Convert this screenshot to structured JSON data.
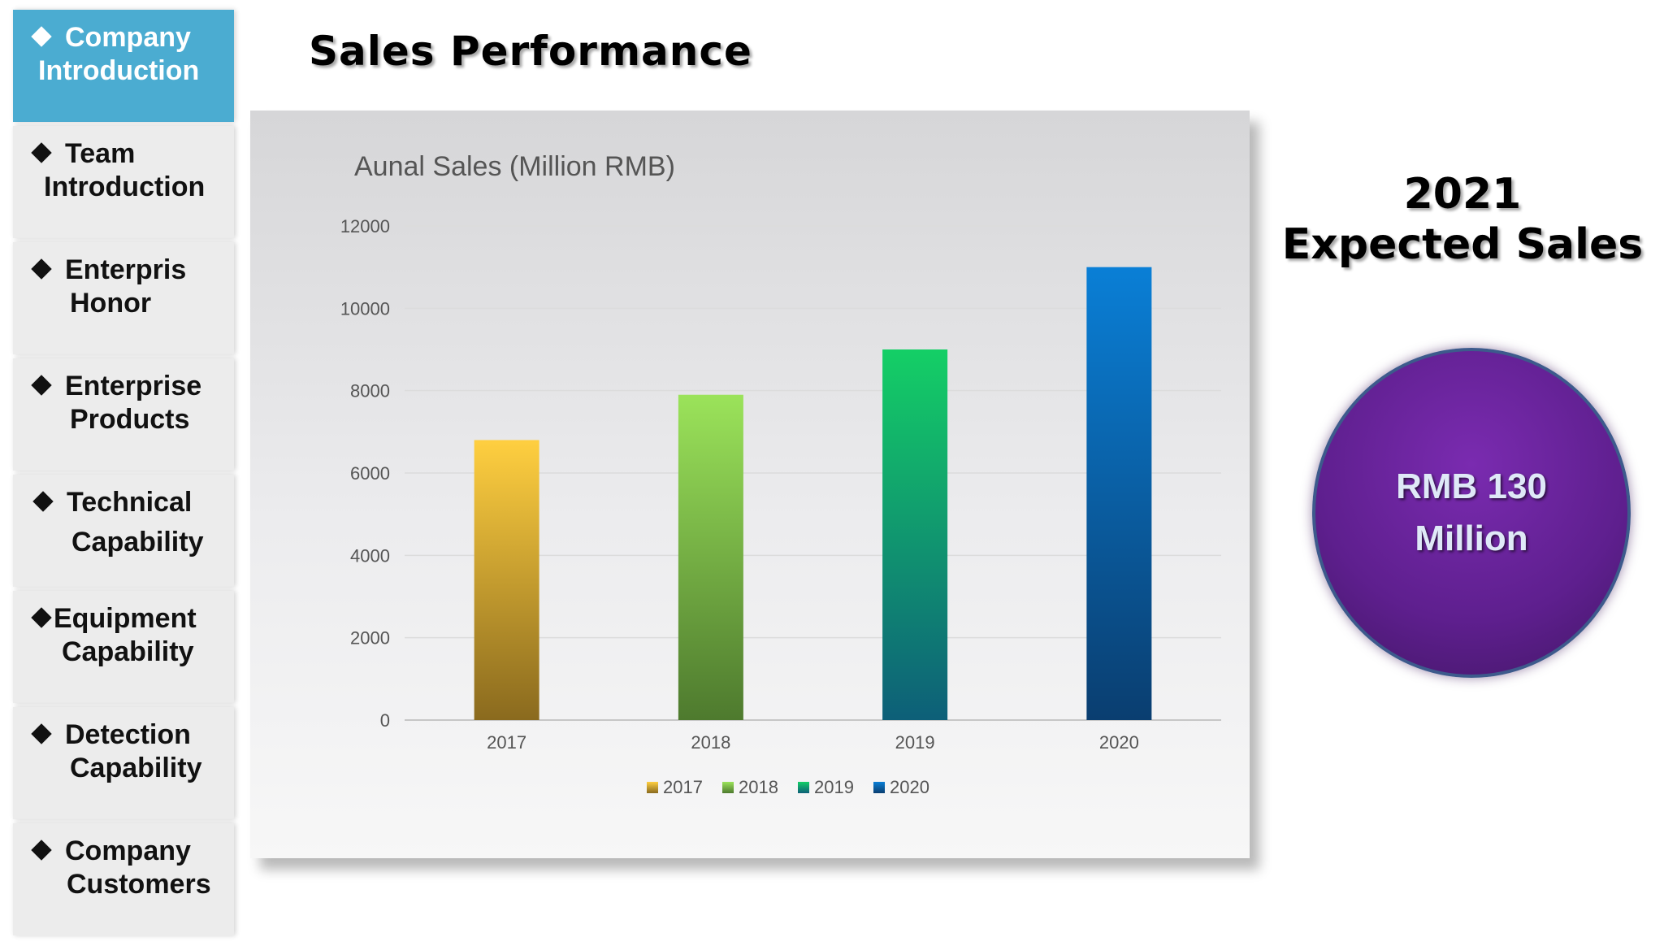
{
  "sidebar": {
    "items": [
      {
        "line1": "Company",
        "line2": "Introduction",
        "active": true
      },
      {
        "line1": "Team",
        "line2": "Introduction",
        "active": false
      },
      {
        "line1": "Enterpris",
        "line2": "Honor",
        "active": false
      },
      {
        "line1": "Enterprise",
        "line2": "Products",
        "active": false
      },
      {
        "line1": "Technical",
        "line2": "Capability",
        "active": false
      },
      {
        "line1": "Equipment",
        "line2": "Capability",
        "active": false
      },
      {
        "line1": "Detection",
        "line2": "Capability",
        "active": false
      },
      {
        "line1": "Company",
        "line2": "Customers",
        "active": false
      }
    ]
  },
  "page": {
    "title": "Sales Performance"
  },
  "expected": {
    "line1": "2021",
    "line2": "Expected Sales",
    "value_line1": "RMB 130",
    "value_line2": "Million"
  },
  "colors": {
    "active_nav": "#4bacd1",
    "bar_2017_top": "#ffcf40",
    "bar_2017_bottom": "#8a6a1e",
    "bar_2018_top": "#9be35a",
    "bar_2018_bottom": "#4e7a2e",
    "bar_2019_top": "#14cf66",
    "bar_2019_bottom": "#0d5f78",
    "bar_2020_top": "#0a7fd6",
    "bar_2020_bottom": "#0a3e70",
    "circle": "#6a24a0"
  },
  "chart_data": {
    "type": "bar",
    "title": "Aunal Sales (Million RMB)",
    "categories": [
      "2017",
      "2018",
      "2019",
      "2020"
    ],
    "values": [
      6800,
      7900,
      9000,
      11000
    ],
    "series": [
      {
        "name": "2017",
        "values": [
          6800,
          null,
          null,
          null
        ]
      },
      {
        "name": "2018",
        "values": [
          null,
          7900,
          null,
          null
        ]
      },
      {
        "name": "2019",
        "values": [
          null,
          null,
          9000,
          null
        ]
      },
      {
        "name": "2020",
        "values": [
          null,
          null,
          null,
          11000
        ]
      }
    ],
    "ylim": [
      0,
      12000
    ],
    "yticks": [
      0,
      2000,
      4000,
      6000,
      8000,
      10000,
      12000
    ],
    "grid": true,
    "legend": "bottom"
  }
}
